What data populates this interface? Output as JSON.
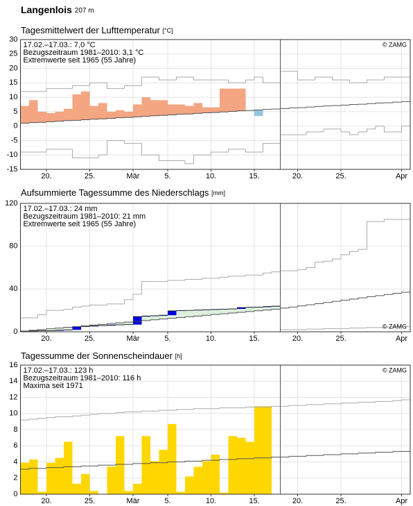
{
  "header": {
    "title": "Langenlois",
    "elevation": "207 m"
  },
  "chart_data": [
    {
      "type": "anomaly",
      "title": "Tagesmittelwert der Lufttemperatur",
      "unit": "[°C]",
      "summary": "17.02.–17.03.: 7,0 °C",
      "reference": "Bezugszeitraum 1981–2010: 3,1 °C",
      "extremes": "Extremwerte seit 1965 (55 Jahre)",
      "credit": "© ZAMG",
      "credit_corner": "top-right",
      "current_x": 30,
      "x": [
        0,
        1,
        2,
        3,
        4,
        5,
        6,
        7,
        8,
        9,
        10,
        11,
        12,
        13,
        14,
        15,
        16,
        17,
        18,
        19,
        20,
        21,
        22,
        23,
        24,
        25,
        26,
        27,
        28,
        29,
        30,
        31,
        32,
        33,
        34,
        35,
        36,
        37,
        38,
        39,
        40,
        41,
        42,
        43,
        44
      ],
      "xlim": [
        0,
        45
      ],
      "xticks": [
        {
          "value": 3,
          "label": "20."
        },
        {
          "value": 8,
          "label": "25."
        },
        {
          "value": 13,
          "label": "Mär"
        },
        {
          "value": 17,
          "label": "5."
        },
        {
          "value": 22,
          "label": "10."
        },
        {
          "value": 27,
          "label": "15."
        },
        {
          "value": 32,
          "label": "20."
        },
        {
          "value": 37,
          "label": "25."
        },
        {
          "value": 44,
          "label": "Apr"
        }
      ],
      "ylim": [
        -15,
        30
      ],
      "yticks": [
        -15,
        -10,
        -5,
        0,
        5,
        10,
        15,
        20,
        25,
        30
      ],
      "grid": true,
      "series": [
        {
          "role": "observed",
          "color": "#f4a582",
          "color_below": "#92c5de",
          "values": [
            7,
            9,
            5,
            4.5,
            5,
            6,
            11,
            12,
            7,
            8,
            5,
            5.5,
            5,
            7.5,
            10,
            9,
            9,
            7.5,
            7.5,
            7,
            8,
            6.5,
            6.5,
            13,
            13,
            13,
            5.5,
            3.5,
            5.8,
            6.0,
            null,
            null,
            null,
            null,
            null,
            null,
            null,
            null,
            null,
            null,
            null,
            null,
            null,
            null,
            null
          ]
        },
        {
          "role": "normal",
          "color": "#555555",
          "values": [
            1.0,
            1.2,
            1.3,
            1.5,
            1.7,
            1.9,
            2.0,
            2.2,
            2.4,
            2.5,
            2.7,
            2.9,
            3.0,
            3.2,
            3.4,
            3.6,
            3.7,
            3.9,
            4.1,
            4.2,
            4.4,
            4.6,
            4.7,
            4.9,
            5.1,
            5.3,
            5.4,
            5.6,
            5.8,
            5.9,
            6.1,
            6.3,
            6.4,
            6.6,
            6.8,
            7.0,
            7.1,
            7.3,
            7.5,
            7.6,
            7.8,
            8.0,
            8.1,
            8.3,
            8.5
          ]
        },
        {
          "role": "extreme",
          "color": "#aaaaaa",
          "values": [
            12,
            12,
            12,
            13,
            13,
            13,
            14,
            14,
            15,
            15,
            13,
            13,
            14,
            14,
            17,
            17,
            16,
            16,
            17,
            17,
            16,
            16,
            16,
            16,
            15,
            15,
            16,
            17,
            15,
            15,
            19,
            19,
            16,
            16,
            17,
            17,
            16,
            16,
            15,
            15,
            16,
            16,
            17,
            17,
            17
          ]
        },
        {
          "role": "extreme",
          "color": "#aaaaaa",
          "values": [
            -9,
            -9,
            -9,
            -8,
            -8,
            -8,
            -11,
            -11,
            -11,
            -10,
            -5,
            -5,
            -6,
            -6,
            -10,
            -10,
            -12,
            -12,
            -12,
            -13,
            -10,
            -10,
            -9,
            -9,
            -8,
            -8,
            -9,
            -9,
            -6,
            -6,
            -3,
            -3,
            -3,
            -2,
            -2,
            -1,
            -1,
            -2,
            -3,
            -2,
            -1,
            0,
            -2,
            -2,
            0
          ]
        }
      ]
    },
    {
      "type": "cumulative",
      "title": "Aufsummierte Tagessumme des Niederschlags",
      "unit": "[mm]",
      "summary": "17.02.–17.03.: 24 mm",
      "reference": "Bezugszeitraum 1981–2010: 21 mm",
      "extremes": "Extremwerte seit 1965 (55 Jahre)",
      "credit": "© ZAMG",
      "credit_corner": "bottom-right",
      "current_x": 30,
      "x": [
        0,
        1,
        2,
        3,
        4,
        5,
        6,
        7,
        8,
        9,
        10,
        11,
        12,
        13,
        14,
        15,
        16,
        17,
        18,
        19,
        20,
        21,
        22,
        23,
        24,
        25,
        26,
        27,
        28,
        29,
        30,
        31,
        32,
        33,
        34,
        35,
        36,
        37,
        38,
        39,
        40,
        41,
        42,
        43,
        44
      ],
      "xlim": [
        0,
        45
      ],
      "xticks": [
        {
          "value": 3,
          "label": "20."
        },
        {
          "value": 8,
          "label": "25."
        },
        {
          "value": 13,
          "label": "Mär"
        },
        {
          "value": 17,
          "label": "5."
        },
        {
          "value": 22,
          "label": "10."
        },
        {
          "value": 27,
          "label": "15."
        },
        {
          "value": 32,
          "label": "20."
        },
        {
          "value": 37,
          "label": "25."
        },
        {
          "value": 44,
          "label": "Apr"
        }
      ],
      "ylim": [
        0,
        120
      ],
      "yticks": [
        0,
        40,
        80,
        120
      ],
      "grid": true,
      "series": [
        {
          "role": "observed",
          "color": "#0000e0",
          "fill_color": "#dcf0dc",
          "values": [
            0.5,
            0.3,
            0.2,
            0,
            0.5,
            0.3,
            3,
            0.2,
            0.5,
            0.3,
            0.5,
            0.2,
            0.2,
            7.5,
            0.5,
            0.3,
            0.5,
            4,
            0.3,
            0.2,
            0.3,
            0.3,
            0.3,
            0.2,
            0.3,
            1.2,
            0.3,
            0.2,
            0.5,
            0.4,
            null,
            null,
            null,
            null,
            null,
            null,
            null,
            null,
            null,
            null,
            null,
            null,
            null,
            null,
            null
          ]
        },
        {
          "role": "normal",
          "color": "#555555",
          "values": [
            0.7,
            1.4,
            2.1,
            2.8,
            3.5,
            4.2,
            4.9,
            5.6,
            6.3,
            7,
            7.7,
            8.4,
            9.1,
            9.8,
            10.5,
            11.2,
            11.9,
            12.6,
            13.3,
            14,
            14.7,
            15.4,
            16.1,
            16.8,
            17.5,
            18.2,
            18.9,
            19.6,
            20.3,
            21,
            22.1,
            23.1,
            24.2,
            25.3,
            26.3,
            27.4,
            28.5,
            29.6,
            30.6,
            31.7,
            32.8,
            33.8,
            34.9,
            36,
            37
          ]
        },
        {
          "role": "extreme",
          "color": "#aaaaaa",
          "values": [
            13,
            13,
            16,
            20,
            20,
            21,
            23,
            24,
            25,
            25,
            26,
            26,
            30,
            35,
            47,
            47,
            47,
            48,
            48,
            49,
            49,
            50,
            50,
            51,
            52,
            52,
            53,
            53,
            55,
            56,
            57,
            57,
            58,
            60,
            65,
            66,
            68,
            72,
            75,
            77,
            103,
            103,
            105,
            105,
            105
          ]
        },
        {
          "role": "extreme",
          "color": "#aaaaaa",
          "values": [
            0,
            0,
            0,
            0,
            0,
            0,
            0,
            0,
            0,
            0,
            0,
            0,
            0,
            0,
            0,
            0,
            0,
            0,
            0,
            0,
            0,
            0,
            0,
            0,
            0,
            0,
            0,
            0,
            0,
            0,
            2,
            2,
            2,
            2.5,
            2.5,
            3,
            3,
            3,
            3.5,
            3.5,
            4,
            4,
            4.5,
            5,
            5
          ]
        }
      ]
    },
    {
      "type": "bar",
      "title": "Tagessumme der Sonnenscheindauer",
      "unit": "[h]",
      "summary": "17.02.–17.03.: 123 h",
      "reference": "Bezugszeitraum 1981–2010: 116 h",
      "extremes": "Maxima seit 1971",
      "credit": "© ZAMG",
      "credit_corner": "top-right",
      "current_x": 30,
      "x": [
        0,
        1,
        2,
        3,
        4,
        5,
        6,
        7,
        8,
        9,
        10,
        11,
        12,
        13,
        14,
        15,
        16,
        17,
        18,
        19,
        20,
        21,
        22,
        23,
        24,
        25,
        26,
        27,
        28,
        29,
        30,
        31,
        32,
        33,
        34,
        35,
        36,
        37,
        38,
        39,
        40,
        41,
        42,
        43,
        44
      ],
      "xlim": [
        0,
        45
      ],
      "xticks": [
        {
          "value": 3,
          "label": "20."
        },
        {
          "value": 8,
          "label": "25."
        },
        {
          "value": 13,
          "label": "Mär"
        },
        {
          "value": 17,
          "label": "5."
        },
        {
          "value": 22,
          "label": "10."
        },
        {
          "value": 27,
          "label": "15."
        },
        {
          "value": 32,
          "label": "20."
        },
        {
          "value": 37,
          "label": "25."
        },
        {
          "value": 44,
          "label": "Apr"
        }
      ],
      "ylim": [
        0,
        16
      ],
      "yticks": [
        0,
        2,
        4,
        6,
        8,
        10,
        12,
        14,
        16
      ],
      "grid": true,
      "series": [
        {
          "role": "observed",
          "color": "#ffd700",
          "values": [
            3.9,
            4.3,
            0.3,
            3.9,
            4.5,
            6.5,
            1.3,
            2.5,
            0.4,
            0,
            3.4,
            7.2,
            0.4,
            1.3,
            7.2,
            4.1,
            5.5,
            8.7,
            0.3,
            2.2,
            3.4,
            4.1,
            4.9,
            0.2,
            7.2,
            7.0,
            6.5,
            10.9,
            10.9,
            0,
            null,
            null,
            null,
            null,
            null,
            null,
            null,
            null,
            null,
            null,
            null,
            null,
            null,
            null,
            null
          ]
        },
        {
          "role": "normal",
          "color": "#555555",
          "values": [
            3.1,
            3.2,
            3.2,
            3.3,
            3.3,
            3.4,
            3.4,
            3.5,
            3.5,
            3.6,
            3.6,
            3.7,
            3.7,
            3.8,
            3.8,
            3.9,
            3.9,
            4.0,
            4.0,
            4.1,
            4.1,
            4.2,
            4.2,
            4.3,
            4.3,
            4.4,
            4.4,
            4.5,
            4.5,
            4.6,
            4.6,
            4.7,
            4.7,
            4.8,
            4.8,
            4.9,
            4.9,
            5.0,
            5.0,
            5.1,
            5.1,
            5.2,
            5.2,
            5.3,
            5.3
          ]
        },
        {
          "role": "extreme",
          "color": "#aaaaaa",
          "values": [
            9.2,
            9.3,
            9.4,
            9.5,
            9.6,
            9.6,
            9.7,
            9.8,
            9.9,
            10.0,
            10.0,
            10.1,
            10.2,
            10.2,
            10.3,
            10.3,
            10.4,
            10.4,
            10.5,
            10.5,
            10.6,
            10.6,
            10.6,
            10.7,
            10.7,
            10.7,
            10.8,
            10.8,
            10.8,
            10.9,
            10.9,
            11.0,
            11.0,
            11.1,
            11.1,
            11.2,
            11.2,
            11.3,
            11.3,
            11.4,
            11.4,
            11.5,
            11.5,
            11.6,
            11.7
          ]
        }
      ]
    }
  ]
}
